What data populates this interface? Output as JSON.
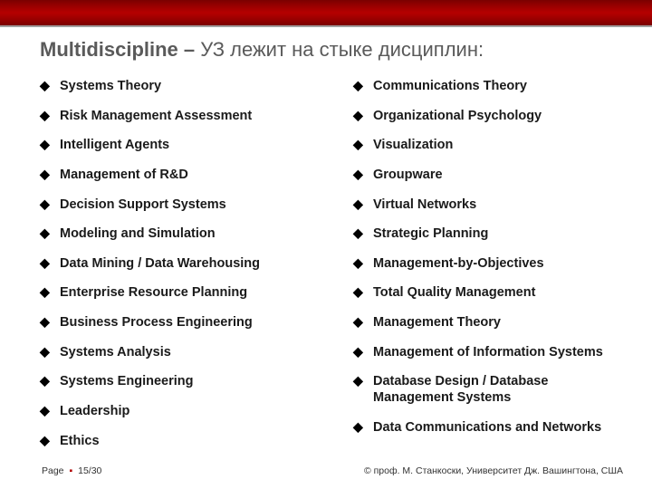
{
  "colors": {
    "band": "#8b0000",
    "title_text": "#5a5a5a",
    "item_text": "#1a1a1a",
    "bullet": "#000000",
    "page_sep": "#b00000"
  },
  "title_main": "Multidiscipline – ",
  "title_suffix": "УЗ лежит на стыке дисциплин:",
  "left_items": [
    "Systems Theory",
    "Risk Management Assessment",
    "Intelligent Agents",
    "Management of R&D",
    "Decision Support Systems",
    "Modeling and Simulation",
    "Data Mining / Data Warehousing",
    "Enterprise Resource Planning",
    "Business Process Engineering",
    "Systems Analysis",
    "Systems Engineering",
    "Leadership",
    "Ethics"
  ],
  "right_items": [
    "Communications Theory",
    "Organizational Psychology",
    "Visualization",
    "Groupware",
    "Virtual Networks",
    "Strategic Planning",
    "Management-by-Objectives",
    "Total Quality Management",
    "Management Theory",
    "Management of Information Systems",
    "Database Design / Database Management Systems",
    "Data Communications and Networks"
  ],
  "footer": {
    "page_label": "Page",
    "page_sep": "▪",
    "page_num": "15/30",
    "attribution": "© проф. М. Станкоски, Университет Дж. Вашингтона, США"
  }
}
